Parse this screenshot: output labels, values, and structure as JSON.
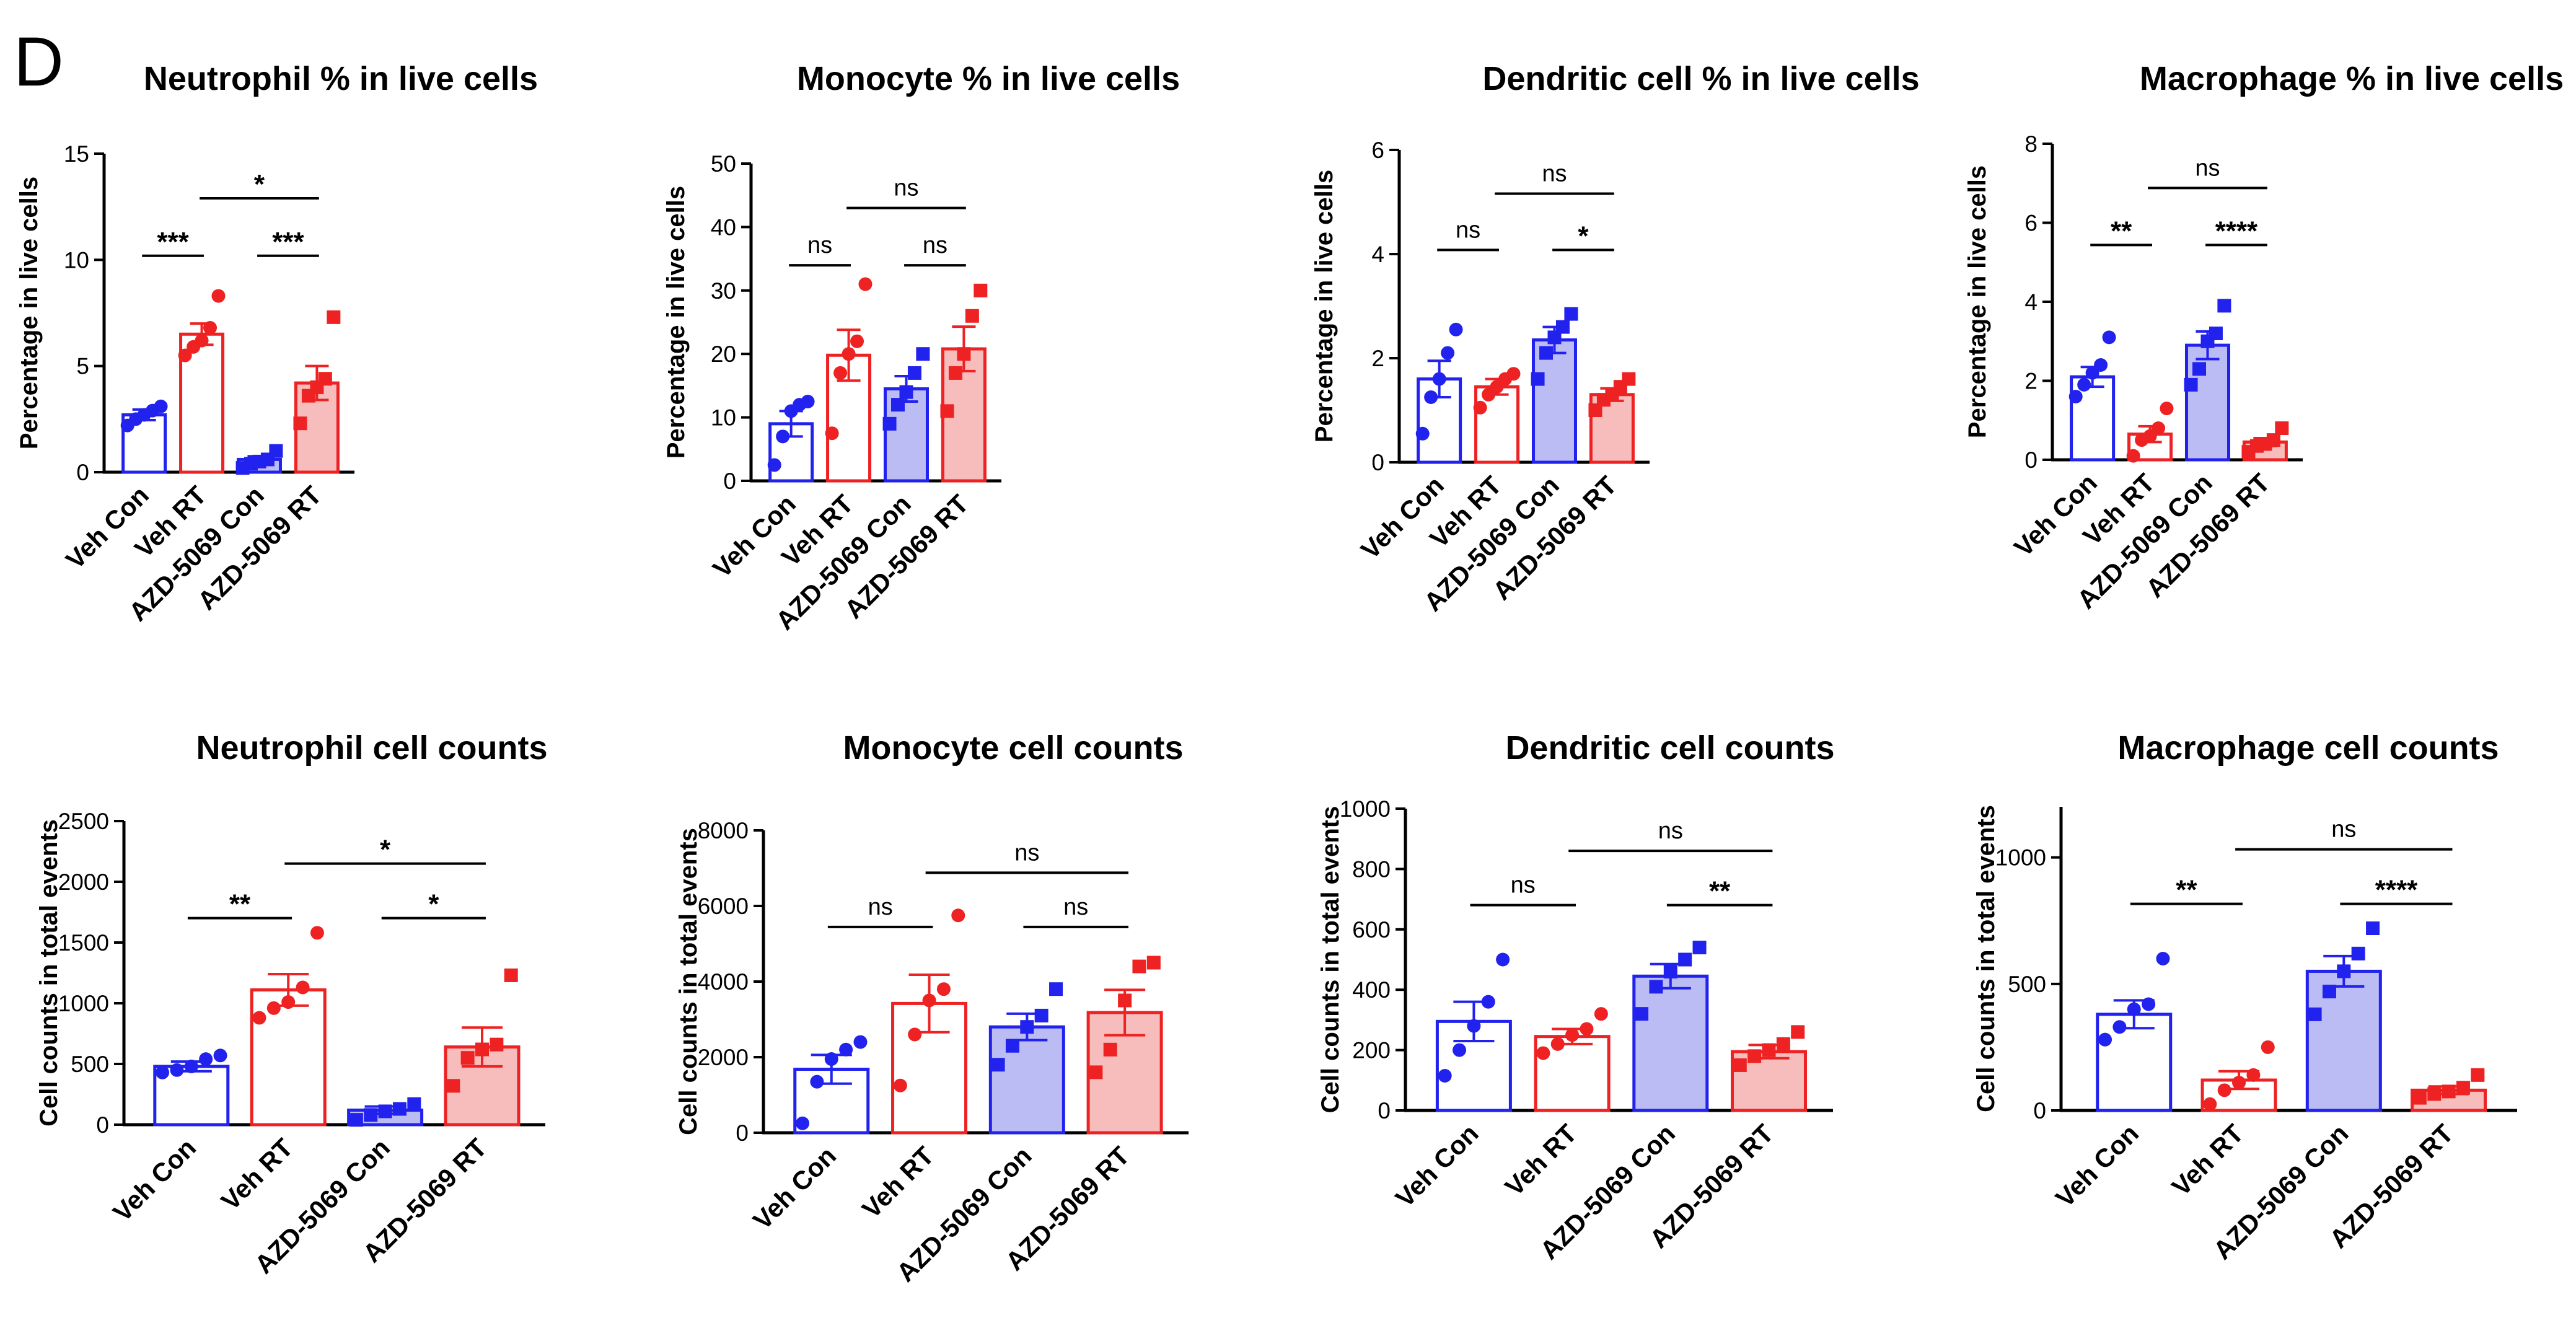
{
  "panel_letter": "D",
  "colors": {
    "blue": "#2222ee",
    "red": "#ee2222",
    "blue_fill": "#bcbcf5",
    "red_fill": "#f7bcbc"
  },
  "chart_data": [
    {
      "type": "bar",
      "title": "Neutrophil % in live cells",
      "ylabel": "Percentage in live cells",
      "categories": [
        "Veh Con",
        "Veh RT",
        "AZD-5069 Con",
        "AZD-5069 RT"
      ],
      "ylim": [
        0,
        15
      ],
      "yticks": [
        0,
        5,
        10,
        15
      ],
      "series": [
        {
          "values": [
            2.7,
            6.5,
            0.6,
            4.2
          ],
          "sem": [
            0.25,
            0.5,
            0.15,
            0.8
          ],
          "points": [
            [
              2.2,
              2.5,
              2.7,
              2.9,
              3.1
            ],
            [
              5.5,
              5.9,
              6.2,
              6.8,
              8.3
            ],
            [
              0.2,
              0.4,
              0.5,
              0.6,
              1.0
            ],
            [
              2.3,
              3.6,
              4.0,
              4.4,
              7.3
            ]
          ]
        }
      ],
      "comparisons": [
        {
          "from": "Veh Con",
          "to": "Veh RT",
          "label": "***"
        },
        {
          "from": "AZD-5069 Con",
          "to": "AZD-5069 RT",
          "label": "***"
        },
        {
          "from": "Veh RT",
          "to": "AZD-5069 RT",
          "label": "*"
        }
      ]
    },
    {
      "type": "bar",
      "title": "Monocyte % in live cells",
      "ylabel": "Percentage in live cells",
      "categories": [
        "Veh Con",
        "Veh RT",
        "AZD-5069 Con",
        "AZD-5069 RT"
      ],
      "ylim": [
        0,
        50
      ],
      "yticks": [
        0,
        10,
        20,
        30,
        40,
        50
      ],
      "series": [
        {
          "values": [
            9,
            19.8,
            14.5,
            20.8
          ],
          "sem": [
            2,
            4,
            2,
            3.5
          ],
          "points": [
            [
              2.5,
              7,
              11,
              12,
              12.5
            ],
            [
              7.5,
              17,
              20,
              22,
              31
            ],
            [
              9,
              12,
              14,
              17,
              20
            ],
            [
              11,
              17,
              20,
              26,
              30
            ]
          ]
        }
      ],
      "comparisons": [
        {
          "from": "Veh Con",
          "to": "Veh RT",
          "label": "ns"
        },
        {
          "from": "AZD-5069 Con",
          "to": "AZD-5069 RT",
          "label": "ns"
        },
        {
          "from": "Veh RT",
          "to": "AZD-5069 RT",
          "label": "ns"
        }
      ]
    },
    {
      "type": "bar",
      "title": "Dendritic cell % in live cells",
      "ylabel": "Percentage in live cells",
      "categories": [
        "Veh Con",
        "Veh RT",
        "AZD-5069 Con",
        "AZD-5069 RT"
      ],
      "ylim": [
        0,
        6
      ],
      "yticks": [
        0,
        2,
        4,
        6
      ],
      "series": [
        {
          "values": [
            1.6,
            1.45,
            2.35,
            1.3
          ],
          "sem": [
            0.35,
            0.15,
            0.25,
            0.12
          ],
          "points": [
            [
              0.55,
              1.25,
              1.6,
              2.1,
              2.55
            ],
            [
              1.05,
              1.3,
              1.45,
              1.6,
              1.7
            ],
            [
              1.6,
              2.1,
              2.4,
              2.6,
              2.85
            ],
            [
              1.0,
              1.2,
              1.3,
              1.45,
              1.6
            ]
          ]
        }
      ],
      "comparisons": [
        {
          "from": "Veh Con",
          "to": "Veh RT",
          "label": "ns"
        },
        {
          "from": "AZD-5069 Con",
          "to": "AZD-5069 RT",
          "label": "*"
        },
        {
          "from": "Veh RT",
          "to": "AZD-5069 RT",
          "label": "ns"
        }
      ]
    },
    {
      "type": "bar",
      "title": "Macrophage % in live cells",
      "ylabel": "Percentage in live cells",
      "categories": [
        "Veh Con",
        "Veh RT",
        "AZD-5069 Con",
        "AZD-5069 RT"
      ],
      "ylim": [
        0,
        8
      ],
      "yticks": [
        0,
        2,
        4,
        6,
        8
      ],
      "series": [
        {
          "values": [
            2.1,
            0.65,
            2.9,
            0.45
          ],
          "sem": [
            0.25,
            0.2,
            0.35,
            0.1
          ],
          "points": [
            [
              1.6,
              1.9,
              2.2,
              2.4,
              3.1
            ],
            [
              0.1,
              0.5,
              0.6,
              0.8,
              1.3
            ],
            [
              1.9,
              2.3,
              3.0,
              3.2,
              3.9
            ],
            [
              0.2,
              0.35,
              0.4,
              0.5,
              0.8
            ]
          ]
        }
      ],
      "comparisons": [
        {
          "from": "Veh Con",
          "to": "Veh RT",
          "label": "**"
        },
        {
          "from": "AZD-5069 Con",
          "to": "AZD-5069 RT",
          "label": "****"
        },
        {
          "from": "Veh RT",
          "to": "AZD-5069 RT",
          "label": "ns"
        }
      ]
    },
    {
      "type": "bar",
      "title": "Neutrophil cell counts",
      "ylabel": "Cell counts in total events",
      "categories": [
        "Veh Con",
        "Veh RT",
        "AZD-5069 Con",
        "AZD-5069 RT"
      ],
      "ylim": [
        0,
        2500
      ],
      "yticks": [
        0,
        500,
        1000,
        1500,
        2000,
        2500
      ],
      "series": [
        {
          "values": [
            480,
            1110,
            120,
            640
          ],
          "sem": [
            40,
            130,
            30,
            160
          ],
          "points": [
            [
              430,
              450,
              480,
              540,
              570
            ],
            [
              880,
              960,
              1010,
              1130,
              1580
            ],
            [
              40,
              80,
              110,
              130,
              170
            ],
            [
              320,
              550,
              620,
              660,
              1230
            ]
          ]
        }
      ],
      "comparisons": [
        {
          "from": "Veh Con",
          "to": "Veh RT",
          "label": "**"
        },
        {
          "from": "AZD-5069 Con",
          "to": "AZD-5069 RT",
          "label": "*"
        },
        {
          "from": "Veh RT",
          "to": "AZD-5069 RT",
          "label": "*"
        }
      ]
    },
    {
      "type": "bar",
      "title": "Monocyte cell counts",
      "ylabel": "Cell counts in total events",
      "categories": [
        "Veh Con",
        "Veh RT",
        "AZD-5069 Con",
        "AZD-5069 RT"
      ],
      "ylim": [
        0,
        8000
      ],
      "yticks": [
        0,
        2000,
        4000,
        6000,
        8000
      ],
      "series": [
        {
          "values": [
            1680,
            3420,
            2800,
            3180
          ],
          "sem": [
            380,
            760,
            350,
            600
          ],
          "points": [
            [
              250,
              1350,
              1950,
              2200,
              2400
            ],
            [
              1250,
              2600,
              3500,
              3800,
              5750
            ],
            [
              1800,
              2300,
              2800,
              3100,
              3800
            ],
            [
              1600,
              2200,
              3500,
              4400,
              4500
            ]
          ]
        }
      ],
      "comparisons": [
        {
          "from": "Veh Con",
          "to": "Veh RT",
          "label": "ns"
        },
        {
          "from": "AZD-5069 Con",
          "to": "AZD-5069 RT",
          "label": "ns"
        },
        {
          "from": "Veh RT",
          "to": "AZD-5069 RT",
          "label": "ns"
        }
      ]
    },
    {
      "type": "bar",
      "title": "Dendritic cell counts",
      "ylabel": "Cell counts in total events",
      "categories": [
        "Veh Con",
        "Veh RT",
        "AZD-5069 Con",
        "AZD-5069 RT"
      ],
      "ylim": [
        0,
        1000
      ],
      "yticks": [
        0,
        200,
        400,
        600,
        800,
        1000
      ],
      "series": [
        {
          "values": [
            295,
            245,
            445,
            195
          ],
          "sem": [
            65,
            25,
            40,
            22
          ],
          "points": [
            [
              115,
              200,
              280,
              360,
              500
            ],
            [
              190,
              220,
              250,
              270,
              320
            ],
            [
              320,
              410,
              460,
              500,
              540
            ],
            [
              150,
              180,
              200,
              220,
              260
            ]
          ]
        }
      ],
      "comparisons": [
        {
          "from": "Veh Con",
          "to": "Veh RT",
          "label": "ns"
        },
        {
          "from": "AZD-5069 Con",
          "to": "AZD-5069 RT",
          "label": "**"
        },
        {
          "from": "Veh RT",
          "to": "AZD-5069 RT",
          "label": "ns"
        }
      ]
    },
    {
      "type": "bar",
      "title": "Macrophage cell counts",
      "ylabel": "Cell counts in total events",
      "categories": [
        "Veh Con",
        "Veh RT",
        "AZD-5069 Con",
        "AZD-5069 RT"
      ],
      "ylim": [
        0,
        1200
      ],
      "yticks": [
        0,
        500,
        1000
      ],
      "series": [
        {
          "values": [
            380,
            120,
            550,
            80
          ],
          "sem": [
            55,
            35,
            60,
            15
          ],
          "points": [
            [
              280,
              330,
              400,
              420,
              600
            ],
            [
              25,
              80,
              110,
              140,
              250
            ],
            [
              380,
              470,
              550,
              620,
              720
            ],
            [
              50,
              65,
              75,
              90,
              140
            ]
          ]
        }
      ],
      "comparisons": [
        {
          "from": "Veh Con",
          "to": "Veh RT",
          "label": "**"
        },
        {
          "from": "AZD-5069 Con",
          "to": "AZD-5069 RT",
          "label": "****"
        },
        {
          "from": "Veh RT",
          "to": "AZD-5069 RT",
          "label": "ns"
        }
      ]
    }
  ]
}
